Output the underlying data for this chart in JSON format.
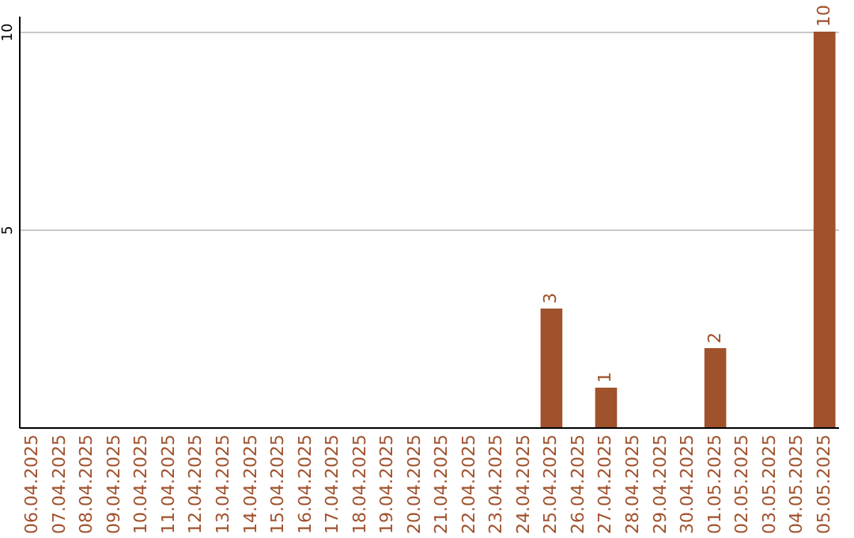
{
  "chart_data": {
    "type": "bar",
    "categories": [
      "06.04.2025",
      "07.04.2025",
      "08.04.2025",
      "09.04.2025",
      "10.04.2025",
      "11.04.2025",
      "12.04.2025",
      "13.04.2025",
      "14.04.2025",
      "15.04.2025",
      "16.04.2025",
      "17.04.2025",
      "18.04.2025",
      "19.04.2025",
      "20.04.2025",
      "21.04.2025",
      "22.04.2025",
      "23.04.2025",
      "24.04.2025",
      "25.04.2025",
      "26.04.2025",
      "27.04.2025",
      "28.04.2025",
      "29.04.2025",
      "30.04.2025",
      "01.05.2025",
      "02.05.2025",
      "03.05.2025",
      "04.05.2025",
      "05.05.2025"
    ],
    "values": [
      0,
      0,
      0,
      0,
      0,
      0,
      0,
      0,
      0,
      0,
      0,
      0,
      0,
      0,
      0,
      0,
      0,
      0,
      0,
      3,
      0,
      1,
      0,
      0,
      0,
      2,
      0,
      0,
      0,
      10
    ],
    "value_labels": [
      null,
      null,
      null,
      null,
      null,
      null,
      null,
      null,
      null,
      null,
      null,
      null,
      null,
      null,
      null,
      null,
      null,
      null,
      null,
      "3",
      null,
      "1",
      null,
      null,
      null,
      "2",
      null,
      null,
      null,
      "10"
    ],
    "color": "#a0522d",
    "ylim": [
      0,
      10.4
    ],
    "yticks": [
      5,
      10
    ],
    "grid": "y"
  }
}
